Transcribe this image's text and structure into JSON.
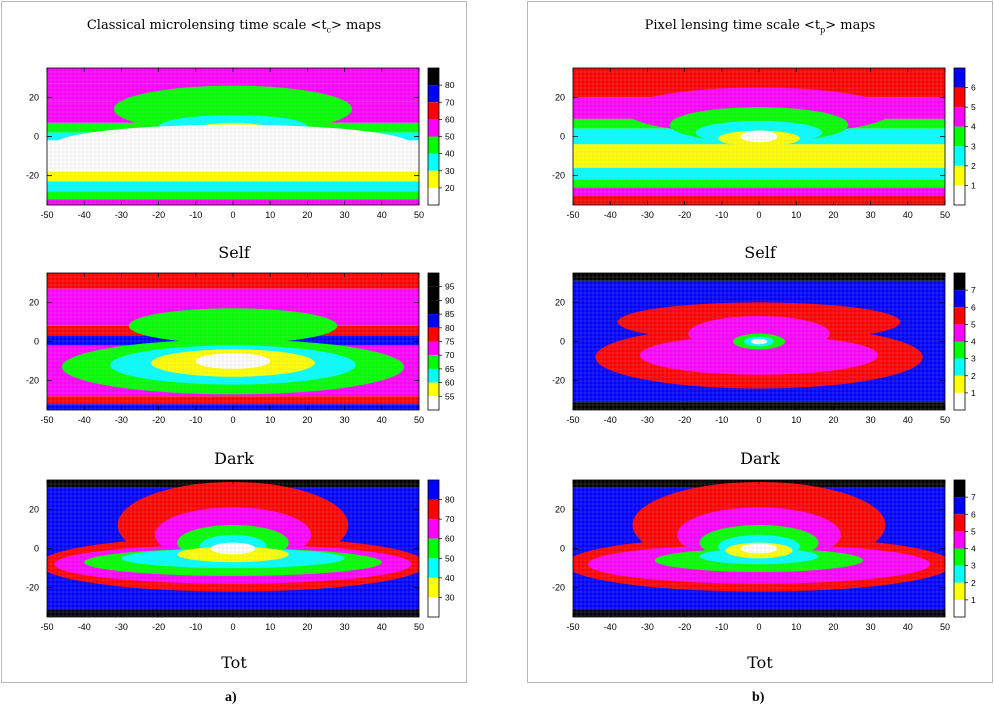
{
  "palette": {
    "white": "#ffffff",
    "yellow": "#ffff00",
    "cyan": "#00ffff",
    "green": "#00ff00",
    "magenta": "#ff00ff",
    "red": "#ff0000",
    "blue": "#0000ff",
    "black": "#000000",
    "grid": "#b4b4b4"
  },
  "panels": [
    {
      "title_pre": "Classical microlensing time scale <t",
      "title_sub": "c",
      "title_post": "> maps",
      "letter": "a)"
    },
    {
      "title_pre": "Pixel lensing time scale <t",
      "title_sub": "p",
      "title_post": "> maps",
      "letter": "b)"
    }
  ],
  "chart_data": [
    {
      "type": "heatmap",
      "panel": "a",
      "row": "Self",
      "title": "Self",
      "x_ticks": [
        -50,
        -40,
        -30,
        -20,
        -10,
        0,
        10,
        20,
        30,
        40,
        50
      ],
      "y_ticks": [
        20,
        0,
        -20
      ],
      "xlim": [
        -50,
        50
      ],
      "ylim": [
        -35,
        35
      ],
      "colorbar_labels": [
        80,
        70,
        60,
        50,
        40,
        30,
        20
      ],
      "levels": [
        "white",
        "yellow",
        "cyan",
        "green",
        "magenta",
        "red",
        "blue",
        "black"
      ],
      "bands": [
        {
          "y": [
            27,
            35
          ],
          "level": "magenta"
        },
        {
          "y": [
            18,
            27
          ],
          "level": "magenta"
        },
        {
          "y": [
            7,
            18
          ],
          "level": "magenta"
        },
        {
          "y": [
            2,
            7
          ],
          "level": "green"
        },
        {
          "y": [
            -2,
            2
          ],
          "level": "cyan"
        },
        {
          "y": [
            -18,
            -2
          ],
          "level": "white"
        },
        {
          "y": [
            -23,
            -18
          ],
          "level": "yellow"
        },
        {
          "y": [
            -28,
            -23
          ],
          "level": "cyan"
        },
        {
          "y": [
            -32,
            -28
          ],
          "level": "green"
        },
        {
          "y": [
            -35,
            -32
          ],
          "level": "magenta"
        }
      ],
      "blobs": [
        {
          "cx": 0,
          "cy": 14,
          "rx": 32,
          "ry": 12,
          "level": "green"
        },
        {
          "cx": 0,
          "cy": 5,
          "rx": 20,
          "ry": 6,
          "level": "cyan"
        },
        {
          "cx": 0,
          "cy": 3,
          "rx": 11,
          "ry": 4,
          "level": "yellow"
        },
        {
          "cx": 0,
          "cy": 1,
          "rx": 6,
          "ry": 3,
          "level": "white"
        },
        {
          "cx": 0,
          "cy": -4,
          "rx": 48,
          "ry": 10,
          "level": "white"
        }
      ]
    },
    {
      "type": "heatmap",
      "panel": "a",
      "row": "Dark",
      "title": "Dark",
      "x_ticks": [
        -50,
        -40,
        -30,
        -20,
        -10,
        0,
        10,
        20,
        30,
        40,
        50
      ],
      "y_ticks": [
        20,
        0,
        -20
      ],
      "xlim": [
        -50,
        50
      ],
      "ylim": [
        -35,
        35
      ],
      "colorbar_labels": [
        95,
        90,
        85,
        80,
        75,
        70,
        65,
        60,
        55
      ],
      "levels": [
        "white",
        "yellow",
        "cyan",
        "green",
        "magenta",
        "red",
        "blue",
        "black"
      ],
      "bands": [
        {
          "y": [
            27,
            35
          ],
          "level": "red"
        },
        {
          "y": [
            8,
            27
          ],
          "level": "magenta"
        },
        {
          "y": [
            3,
            8
          ],
          "level": "red"
        },
        {
          "y": [
            -2,
            3
          ],
          "level": "blue"
        },
        {
          "y": [
            -28,
            -2
          ],
          "level": "magenta"
        },
        {
          "y": [
            -32,
            -28
          ],
          "level": "red"
        },
        {
          "y": [
            -35,
            -32
          ],
          "level": "blue"
        }
      ],
      "blobs": [
        {
          "cx": 0,
          "cy": 8,
          "rx": 28,
          "ry": 9,
          "level": "green"
        },
        {
          "cx": 0,
          "cy": -13,
          "rx": 46,
          "ry": 14,
          "level": "green"
        },
        {
          "cx": 0,
          "cy": -12,
          "rx": 33,
          "ry": 10,
          "level": "cyan"
        },
        {
          "cx": 0,
          "cy": -11,
          "rx": 22,
          "ry": 7,
          "level": "yellow"
        },
        {
          "cx": 0,
          "cy": -10,
          "rx": 10,
          "ry": 4,
          "level": "white"
        }
      ]
    },
    {
      "type": "heatmap",
      "panel": "a",
      "row": "Tot",
      "title": "Tot",
      "x_ticks": [
        -50,
        -40,
        -30,
        -20,
        -10,
        0,
        10,
        20,
        30,
        40,
        50
      ],
      "y_ticks": [
        20,
        0,
        -20
      ],
      "xlim": [
        -50,
        50
      ],
      "ylim": [
        -35,
        35
      ],
      "colorbar_labels": [
        80,
        70,
        60,
        50,
        40,
        30
      ],
      "levels": [
        "white",
        "yellow",
        "cyan",
        "green",
        "magenta",
        "red",
        "blue",
        "black"
      ],
      "bands": [
        {
          "y": [
            31,
            35
          ],
          "level": "black"
        },
        {
          "y": [
            -25,
            31
          ],
          "level": "blue"
        },
        {
          "y": [
            -31,
            -25
          ],
          "level": "blue"
        },
        {
          "y": [
            -35,
            -31
          ],
          "level": "black"
        }
      ],
      "blobs": [
        {
          "cx": 0,
          "cy": 12,
          "rx": 31,
          "ry": 22,
          "level": "red"
        },
        {
          "cx": 0,
          "cy": -8,
          "rx": 52,
          "ry": 14,
          "level": "red"
        },
        {
          "cx": 0,
          "cy": 7,
          "rx": 21,
          "ry": 14,
          "level": "magenta"
        },
        {
          "cx": 0,
          "cy": -8,
          "rx": 48,
          "ry": 10,
          "level": "magenta"
        },
        {
          "cx": 0,
          "cy": 3,
          "rx": 15,
          "ry": 9,
          "level": "green"
        },
        {
          "cx": 0,
          "cy": -7,
          "rx": 40,
          "ry": 7,
          "level": "green"
        },
        {
          "cx": 0,
          "cy": -5,
          "rx": 30,
          "ry": 5,
          "level": "cyan"
        },
        {
          "cx": 0,
          "cy": 1,
          "rx": 9,
          "ry": 6,
          "level": "cyan"
        },
        {
          "cx": 0,
          "cy": -3,
          "rx": 15,
          "ry": 4,
          "level": "yellow"
        },
        {
          "cx": 0,
          "cy": 0,
          "rx": 6,
          "ry": 3,
          "level": "white"
        }
      ]
    },
    {
      "type": "heatmap",
      "panel": "b",
      "row": "Self",
      "title": "Self",
      "x_ticks": [
        -50,
        -40,
        -30,
        -20,
        -10,
        0,
        10,
        20,
        30,
        40,
        50
      ],
      "y_ticks": [
        20,
        0,
        -20
      ],
      "xlim": [
        -50,
        50
      ],
      "ylim": [
        -35,
        35
      ],
      "colorbar_labels": [
        6,
        5,
        4,
        3,
        2,
        1
      ],
      "levels": [
        "white",
        "yellow",
        "cyan",
        "green",
        "magenta",
        "red",
        "blue",
        "black"
      ],
      "bands": [
        {
          "y": [
            20,
            35
          ],
          "level": "red"
        },
        {
          "y": [
            9,
            20
          ],
          "level": "magenta"
        },
        {
          "y": [
            4,
            9
          ],
          "level": "green"
        },
        {
          "y": [
            -4,
            4
          ],
          "level": "cyan"
        },
        {
          "y": [
            -16,
            -4
          ],
          "level": "yellow"
        },
        {
          "y": [
            -22,
            -16
          ],
          "level": "cyan"
        },
        {
          "y": [
            -26,
            -22
          ],
          "level": "green"
        },
        {
          "y": [
            -30,
            -26
          ],
          "level": "magenta"
        },
        {
          "y": [
            -35,
            -30
          ],
          "level": "red"
        }
      ],
      "blobs": [
        {
          "cx": 0,
          "cy": 13,
          "rx": 36,
          "ry": 12,
          "level": "magenta"
        },
        {
          "cx": 0,
          "cy": 6,
          "rx": 24,
          "ry": 9,
          "level": "green"
        },
        {
          "cx": 0,
          "cy": 2,
          "rx": 17,
          "ry": 6,
          "level": "cyan"
        },
        {
          "cx": 0,
          "cy": -1,
          "rx": 11,
          "ry": 4,
          "level": "yellow"
        },
        {
          "cx": 0,
          "cy": 0,
          "rx": 5,
          "ry": 3,
          "level": "white"
        }
      ]
    },
    {
      "type": "heatmap",
      "panel": "b",
      "row": "Dark",
      "title": "Dark",
      "x_ticks": [
        -50,
        -40,
        -30,
        -20,
        -10,
        0,
        10,
        20,
        30,
        40,
        50
      ],
      "y_ticks": [
        20,
        0,
        -20
      ],
      "xlim": [
        -50,
        50
      ],
      "ylim": [
        -35,
        35
      ],
      "colorbar_labels": [
        7,
        6,
        5,
        4,
        3,
        2,
        1
      ],
      "levels": [
        "white",
        "yellow",
        "cyan",
        "green",
        "magenta",
        "red",
        "blue",
        "black"
      ],
      "bands": [
        {
          "y": [
            31,
            35
          ],
          "level": "black"
        },
        {
          "y": [
            -31,
            31
          ],
          "level": "blue"
        },
        {
          "y": [
            -35,
            -31
          ],
          "level": "black"
        }
      ],
      "blobs": [
        {
          "cx": 0,
          "cy": 10,
          "rx": 38,
          "ry": 10,
          "level": "red"
        },
        {
          "cx": 0,
          "cy": -8,
          "rx": 44,
          "ry": 16,
          "level": "red"
        },
        {
          "cx": 0,
          "cy": 4,
          "rx": 19,
          "ry": 9,
          "level": "magenta"
        },
        {
          "cx": 0,
          "cy": -7,
          "rx": 32,
          "ry": 10,
          "level": "magenta"
        },
        {
          "cx": 0,
          "cy": 0,
          "rx": 7,
          "ry": 4,
          "level": "green"
        },
        {
          "cx": 0,
          "cy": 0,
          "rx": 4,
          "ry": 2.5,
          "level": "cyan"
        },
        {
          "cx": 0,
          "cy": 0,
          "rx": 2.2,
          "ry": 1.4,
          "level": "white"
        }
      ]
    },
    {
      "type": "heatmap",
      "panel": "b",
      "row": "Tot",
      "title": "Tot",
      "x_ticks": [
        -50,
        -40,
        -30,
        -20,
        -10,
        0,
        10,
        20,
        30,
        40,
        50
      ],
      "y_ticks": [
        20,
        0,
        -20
      ],
      "xlim": [
        -50,
        50
      ],
      "ylim": [
        -35,
        35
      ],
      "colorbar_labels": [
        7,
        6,
        5,
        4,
        3,
        2,
        1
      ],
      "levels": [
        "white",
        "yellow",
        "cyan",
        "green",
        "magenta",
        "red",
        "blue",
        "black"
      ],
      "bands": [
        {
          "y": [
            31,
            35
          ],
          "level": "black"
        },
        {
          "y": [
            -31,
            31
          ],
          "level": "blue"
        },
        {
          "y": [
            -35,
            -31
          ],
          "level": "black"
        }
      ],
      "blobs": [
        {
          "cx": 0,
          "cy": 12,
          "rx": 34,
          "ry": 22,
          "level": "red"
        },
        {
          "cx": 0,
          "cy": -8,
          "rx": 52,
          "ry": 14,
          "level": "red"
        },
        {
          "cx": 0,
          "cy": 7,
          "rx": 22,
          "ry": 14,
          "level": "magenta"
        },
        {
          "cx": 0,
          "cy": -8,
          "rx": 46,
          "ry": 10,
          "level": "magenta"
        },
        {
          "cx": 0,
          "cy": 3,
          "rx": 16,
          "ry": 9,
          "level": "green"
        },
        {
          "cx": 0,
          "cy": -6,
          "rx": 28,
          "ry": 6,
          "level": "green"
        },
        {
          "cx": 0,
          "cy": 1,
          "rx": 11,
          "ry": 6,
          "level": "cyan"
        },
        {
          "cx": 0,
          "cy": -4,
          "rx": 16,
          "ry": 4,
          "level": "cyan"
        },
        {
          "cx": 0,
          "cy": -1,
          "rx": 9,
          "ry": 4,
          "level": "yellow"
        },
        {
          "cx": 0,
          "cy": 0,
          "rx": 5,
          "ry": 2.5,
          "level": "white"
        }
      ]
    }
  ]
}
